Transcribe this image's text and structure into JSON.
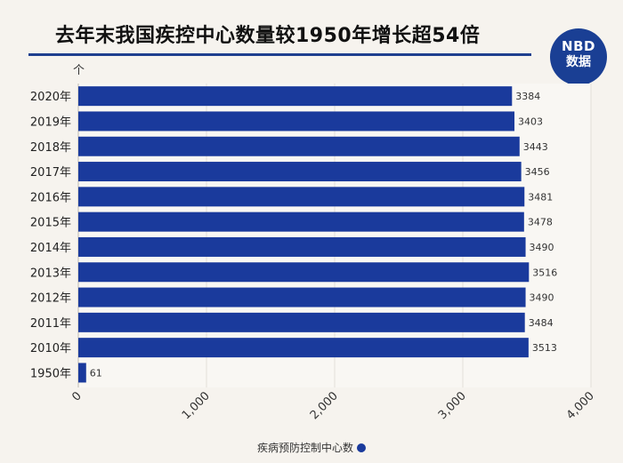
{
  "header": {
    "title": "去年末我国疾控中心数量较1950年增长超54倍",
    "logo_line1": "NBD",
    "logo_line2": "数据"
  },
  "chart_data": {
    "type": "bar",
    "orientation": "horizontal",
    "unit": "个",
    "categories": [
      "2020年",
      "2019年",
      "2018年",
      "2017年",
      "2016年",
      "2015年",
      "2014年",
      "2013年",
      "2012年",
      "2011年",
      "2010年",
      "1950年"
    ],
    "series": [
      {
        "name": "疾病预防控制中心数",
        "values": [
          3384,
          3403,
          3443,
          3456,
          3481,
          3478,
          3490,
          3516,
          3490,
          3484,
          3513,
          61
        ]
      }
    ],
    "xlim": [
      0,
      4000
    ],
    "xticks": [
      "0",
      "1,000",
      "2,000",
      "3,000",
      "4,000"
    ],
    "bar_color": "#1a3a9c",
    "legend_position": "bottom-center"
  }
}
